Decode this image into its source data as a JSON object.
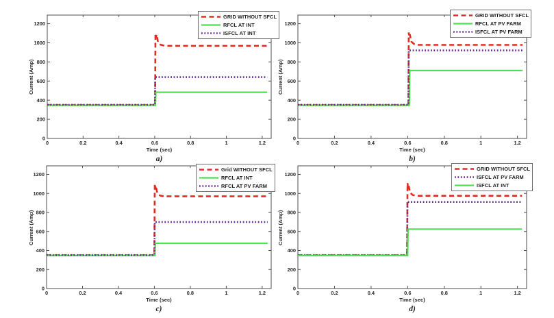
{
  "figure": {
    "background": "#ffffff",
    "description_visible_text_only": true
  },
  "colors": {
    "red": "#e02b20",
    "green": "#4ee051",
    "purple": "#662d91",
    "axis": "#4d4d4d",
    "text": "#262626"
  },
  "chart_data": [
    {
      "type": "line",
      "caption": "a)",
      "xlabel": "Time (sec)",
      "ylabel": "Current (Amp)",
      "xlim": [
        0,
        1.25
      ],
      "ylim": [
        0,
        1290
      ],
      "grid": false,
      "legend_position": "top-right",
      "xticks": [
        0,
        0.2,
        0.4,
        0.6,
        0.8,
        1,
        1.2
      ],
      "xtick_labels": [
        "0",
        "0.2",
        "0.4",
        "0.6",
        "0.8",
        "1",
        "1.2"
      ],
      "yticks": [
        0,
        200,
        400,
        600,
        800,
        1000,
        1200
      ],
      "fault_time_sec": 0.6,
      "series": [
        {
          "name": "GRID WITHOUT SFCL",
          "color": "red",
          "style": "dashed",
          "points": [
            [
              0,
              350
            ],
            [
              0.6,
              350
            ],
            [
              0.602,
              348
            ],
            [
              0.604,
              1098
            ],
            [
              0.607,
              1058
            ],
            [
              0.61,
              1088
            ],
            [
              0.618,
              1008
            ],
            [
              0.633,
              980
            ],
            [
              0.658,
              968
            ],
            [
              1.228,
              968
            ]
          ]
        },
        {
          "name": "RFCL AT INT",
          "color": "green",
          "style": "solid",
          "points": [
            [
              0,
              347
            ],
            [
              0.604,
              347
            ],
            [
              0.606,
              483
            ],
            [
              1.228,
              483
            ]
          ]
        },
        {
          "name": "ISFCL AT INT",
          "color": "purple",
          "style": "dotted",
          "points": [
            [
              0,
              352
            ],
            [
              0.601,
              352
            ],
            [
              0.603,
              641
            ],
            [
              1.228,
              641
            ]
          ]
        }
      ]
    },
    {
      "type": "line",
      "caption": "b)",
      "xlabel": "Time (sec)",
      "ylabel": "Current (Amp)",
      "xlim": [
        0,
        1.25
      ],
      "ylim": [
        0,
        1290
      ],
      "grid": false,
      "legend_position": "top-right",
      "xticks": [
        0,
        0.2,
        0.4,
        0.6,
        0.8,
        1,
        1.2
      ],
      "xtick_labels": [
        "0",
        "0.2",
        "0.4",
        "0.6",
        "0.8",
        "1",
        "1.2"
      ],
      "yticks": [
        0,
        200,
        400,
        600,
        800,
        1000,
        1200
      ],
      "fault_time_sec": 0.6,
      "series": [
        {
          "name": "GRID WITHOUT SFCL",
          "color": "red",
          "style": "dashed",
          "points": [
            [
              0,
              350
            ],
            [
              0.604,
              350
            ],
            [
              0.606,
              1108
            ],
            [
              0.609,
              1062
            ],
            [
              0.612,
              1088
            ],
            [
              0.62,
              1012
            ],
            [
              0.636,
              986
            ],
            [
              0.66,
              978
            ],
            [
              1.228,
              978
            ]
          ]
        },
        {
          "name": "RFCL AT  PV FARM",
          "color": "green",
          "style": "solid",
          "points": [
            [
              0,
              347
            ],
            [
              0.609,
              347
            ],
            [
              0.611,
              710
            ],
            [
              1.228,
              710
            ]
          ]
        },
        {
          "name": "ISFCL AT PV FARM",
          "color": "purple",
          "style": "dotted",
          "points": [
            [
              0,
              352
            ],
            [
              0.604,
              352
            ],
            [
              0.606,
              920
            ],
            [
              1.228,
              920
            ]
          ]
        }
      ]
    },
    {
      "type": "line",
      "caption": "c)",
      "xlabel": "Time (sec)",
      "ylabel": "Current (Amp)",
      "xlim": [
        0,
        1.25
      ],
      "ylim": [
        0,
        1290
      ],
      "grid": false,
      "legend_position": "top-right",
      "xticks": [
        0,
        0.2,
        0.4,
        0.6,
        0.8,
        1,
        1.2
      ],
      "xtick_labels": [
        "0",
        "0.2",
        "0.4",
        "0.6",
        "0.8",
        "1",
        "1.2"
      ],
      "yticks": [
        0,
        200,
        400,
        600,
        800,
        1000,
        1200
      ],
      "fault_time_sec": 0.6,
      "series": [
        {
          "name": "Grid WITHOUT SFCL",
          "color": "red",
          "style": "dashed",
          "points": [
            [
              0,
              350
            ],
            [
              0.6,
              350
            ],
            [
              0.602,
              1102
            ],
            [
              0.605,
              1052
            ],
            [
              0.608,
              1082
            ],
            [
              0.616,
              1005
            ],
            [
              0.632,
              977
            ],
            [
              0.656,
              970
            ],
            [
              1.23,
              970
            ]
          ]
        },
        {
          "name": "RFCL AT INT",
          "color": "green",
          "style": "solid",
          "points": [
            [
              0,
              347
            ],
            [
              0.603,
              347
            ],
            [
              0.605,
              476
            ],
            [
              1.23,
              476
            ]
          ]
        },
        {
          "name": "RFCL AT PV FARM",
          "color": "purple",
          "style": "dotted",
          "points": [
            [
              0,
              352
            ],
            [
              0.6,
              352
            ],
            [
              0.602,
              700
            ],
            [
              1.23,
              700
            ]
          ]
        }
      ]
    },
    {
      "type": "line",
      "caption": "d)",
      "xlabel": "Time (sec)",
      "ylabel": "Current (Amp)",
      "xlim": [
        0,
        1.25
      ],
      "ylim": [
        0,
        1290
      ],
      "grid": false,
      "legend_position": "top-right",
      "xticks": [
        0,
        0.2,
        0.4,
        0.6,
        0.8,
        1,
        1.2
      ],
      "xtick_labels": [
        "0",
        "0.2",
        "0.4",
        "0.6",
        "0.8",
        "1",
        "1.2"
      ],
      "yticks": [
        0,
        200,
        400,
        600,
        800,
        1000,
        1200
      ],
      "fault_time_sec": 0.6,
      "series": [
        {
          "name": "GRID WITHOUT SFCL",
          "color": "red",
          "style": "dashed",
          "points": [
            [
              0,
              350
            ],
            [
              0.597,
              350
            ],
            [
              0.599,
              1108
            ],
            [
              0.602,
              1058
            ],
            [
              0.605,
              1085
            ],
            [
              0.613,
              1008
            ],
            [
              0.628,
              982
            ],
            [
              0.652,
              975
            ],
            [
              1.225,
              975
            ]
          ]
        },
        {
          "name": "ISFCL AT PV FARM",
          "color": "purple",
          "style": "dotted",
          "points": [
            [
              0,
              352
            ],
            [
              0.597,
              352
            ],
            [
              0.599,
              910
            ],
            [
              1.225,
              910
            ]
          ]
        },
        {
          "name": "ISFCL AT INT",
          "color": "green",
          "style": "solid",
          "points": [
            [
              0,
              347
            ],
            [
              0.6,
              347
            ],
            [
              0.602,
              625
            ],
            [
              1.225,
              625
            ]
          ]
        }
      ]
    }
  ]
}
